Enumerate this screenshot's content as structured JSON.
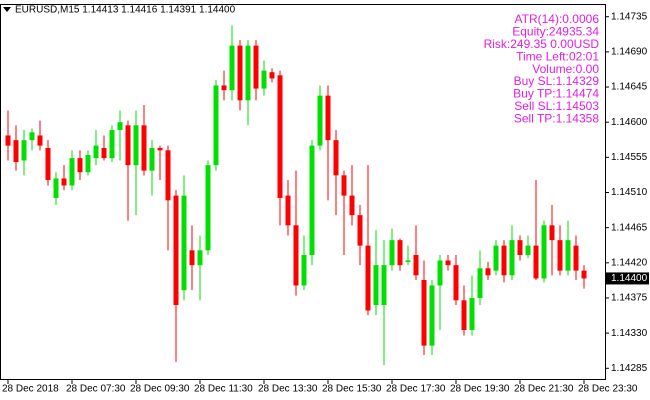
{
  "chart_data": {
    "type": "candlestick",
    "title": "EURUSD,M15  1.14413 1.14416 1.14391 1.14400",
    "info_lines": [
      "ATR(14):0.0006",
      "Equity:24935.34",
      "Risk:249.35 0.00USD",
      "Time Left:02:01",
      "Volume:0.00",
      "Buy SL:1.14329",
      "Buy TP:1.14474",
      "Sell SL:1.14503",
      "Sell TP:1.14358"
    ],
    "categories": [
      "28 Dec 2018",
      null,
      null,
      null,
      null,
      null,
      null,
      null,
      "28 Dec 07:30",
      null,
      null,
      null,
      null,
      null,
      null,
      null,
      "28 Dec 09:30",
      null,
      null,
      null,
      null,
      null,
      null,
      null,
      "28 Dec 11:30",
      null,
      null,
      null,
      null,
      null,
      null,
      null,
      "28 Dec 13:30",
      null,
      null,
      null,
      null,
      null,
      null,
      null,
      "28 Dec 15:30",
      null,
      null,
      null,
      null,
      null,
      null,
      null,
      "28 Dec 17:30",
      null,
      null,
      null,
      null,
      null,
      null,
      null,
      "28 Dec 19:30",
      null,
      null,
      null,
      null,
      null,
      null,
      null,
      "28 Dec 21:30",
      null,
      null,
      null,
      null,
      null,
      null,
      null,
      "28 Dec 23:30"
    ],
    "open": [
      1.14583,
      1.14577,
      1.14551,
      1.14577,
      1.14583,
      1.14567,
      1.14503,
      1.14528,
      1.14519,
      1.14554,
      1.14536,
      1.14554,
      1.14567,
      1.14554,
      1.1459,
      1.14596,
      1.14545,
      1.14596,
      1.14538,
      1.14567,
      1.14564,
      1.14506,
      1.14385,
      1.14436,
      1.14417,
      1.14436,
      1.14545,
      1.14647,
      1.14641,
      1.14698,
      1.14628,
      1.14698,
      1.14643,
      1.14664,
      1.1466,
      1.14506,
      1.14468,
      1.14391,
      1.1443,
      1.1457,
      1.14634,
      1.14577,
      1.14532,
      1.14506,
      1.14481,
      1.14442,
      1.14366,
      1.14366,
      1.14417,
      1.14449,
      1.14421,
      1.1443,
      1.14398,
      1.14314,
      1.14391,
      1.14423,
      1.14417,
      1.14372,
      1.14334,
      1.14375,
      1.14413,
      1.1441,
      1.14442,
      1.14404,
      1.14449,
      1.1443,
      1.14442,
      1.144,
      1.14468,
      1.14449,
      1.1441,
      1.14442,
      1.1441
    ],
    "high": [
      1.14615,
      1.14596,
      1.1459,
      1.14592,
      1.14602,
      1.14577,
      1.14536,
      1.14545,
      1.14564,
      1.14564,
      1.14564,
      1.1459,
      1.14583,
      1.14596,
      1.14615,
      1.14602,
      1.14615,
      1.14622,
      1.14577,
      1.1457,
      1.1457,
      1.14513,
      1.14532,
      1.14468,
      1.14455,
      1.14551,
      1.14654,
      1.14666,
      1.14724,
      1.14705,
      1.14705,
      1.14705,
      1.14679,
      1.14669,
      1.14666,
      1.14526,
      1.14538,
      1.14455,
      1.14577,
      1.14647,
      1.14647,
      1.1459,
      1.14538,
      1.14545,
      1.14494,
      1.14545,
      1.14462,
      1.14449,
      1.14464,
      1.14451,
      1.14442,
      1.14468,
      1.14423,
      1.14398,
      1.1443,
      1.1443,
      1.1443,
      1.14391,
      1.14404,
      1.14436,
      1.14421,
      1.14449,
      1.14449,
      1.14468,
      1.14455,
      1.14455,
      1.14526,
      1.14474,
      1.14494,
      1.14468,
      1.14474,
      1.14455,
      1.14417
    ],
    "low": [
      1.14551,
      1.14538,
      1.14532,
      1.14564,
      1.14564,
      1.14519,
      1.14494,
      1.14513,
      1.14513,
      1.14526,
      1.14532,
      1.14545,
      1.14551,
      1.14549,
      1.14551,
      1.14474,
      1.14481,
      1.14532,
      1.14506,
      1.14526,
      1.14436,
      1.14293,
      1.14372,
      1.14385,
      1.14372,
      1.1443,
      1.14538,
      1.14628,
      1.14628,
      1.14615,
      1.14596,
      1.14628,
      1.14634,
      1.14651,
      1.14468,
      1.14455,
      1.14378,
      1.14385,
      1.14417,
      1.14564,
      1.145,
      1.14481,
      1.1443,
      1.14468,
      1.14417,
      1.14353,
      1.14353,
      1.14289,
      1.1441,
      1.1441,
      1.14417,
      1.14398,
      1.14302,
      1.14302,
      1.14334,
      1.1441,
      1.14366,
      1.14327,
      1.14327,
      1.14366,
      1.14398,
      1.14404,
      1.14395,
      1.14398,
      1.14423,
      1.14426,
      1.14398,
      1.14395,
      1.14404,
      1.14404,
      1.14404,
      1.14398,
      1.14387
    ],
    "close": [
      1.1457,
      1.14549,
      1.14577,
      1.14587,
      1.1457,
      1.14526,
      1.14528,
      1.14519,
      1.14554,
      1.14536,
      1.14558,
      1.1457,
      1.14554,
      1.1459,
      1.146,
      1.14545,
      1.14596,
      1.14538,
      1.14567,
      1.14564,
      1.145,
      1.14366,
      1.14506,
      1.14417,
      1.14436,
      1.14545,
      1.14647,
      1.14641,
      1.14698,
      1.14628,
      1.14698,
      1.14643,
      1.14666,
      1.14656,
      1.14503,
      1.14468,
      1.14391,
      1.1443,
      1.1457,
      1.14634,
      1.14577,
      1.14532,
      1.14506,
      1.14481,
      1.14442,
      1.14359,
      1.14417,
      1.14417,
      1.14449,
      1.14417,
      1.14423,
      1.14404,
      1.14314,
      1.14391,
      1.14423,
      1.14417,
      1.14372,
      1.14334,
      1.14375,
      1.14413,
      1.14404,
      1.14442,
      1.14404,
      1.14449,
      1.1443,
      1.14442,
      1.144,
      1.14468,
      1.14449,
      1.1441,
      1.14449,
      1.1441,
      1.144
    ],
    "up_color": "#00e000",
    "down_color": "#ff0000",
    "current_price": {
      "value": 1.144,
      "label": "1.14400"
    },
    "ylim": [
      1.1427,
      1.1475
    ],
    "yticks": [
      1.14735,
      {
        "value": 1.1469,
        "label": "1.14690"
      },
      1.14645,
      {
        "value": 1.146,
        "label": "1.14600"
      },
      1.14555,
      {
        "value": 1.1451,
        "label": "1.14510"
      },
      1.14465,
      {
        "value": 1.1442,
        "label": "1.14420"
      },
      1.14375,
      {
        "value": 1.1433,
        "label": "1.14330"
      },
      1.14285
    ]
  }
}
